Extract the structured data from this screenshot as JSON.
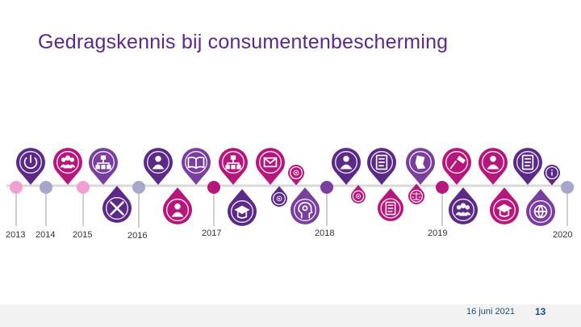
{
  "slide": {
    "title": "Gedragskennis bij consumentenbescherming"
  },
  "timeline": {
    "years": [
      "2013",
      "2014",
      "2015",
      "2016",
      "2017",
      "2018",
      "2019",
      "2020"
    ],
    "colors": {
      "purple_dark": "#5b2a86",
      "magenta": "#b5187b",
      "purple_mid": "#7a3f9d",
      "pink_light": "#f0a0d2",
      "lavender": "#a9a6cc",
      "line": "#d8d8d8"
    },
    "markers_top": [
      {
        "icon": "power-icon",
        "color": "purple_dark"
      },
      {
        "icon": "group-icon",
        "color": "magenta"
      },
      {
        "icon": "hierarchy-icon",
        "color": "purple_mid"
      },
      {
        "icon": "presenter-icon",
        "color": "purple_dark"
      },
      {
        "icon": "book-icon",
        "color": "purple_mid"
      },
      {
        "icon": "org-chart-icon",
        "color": "magenta"
      },
      {
        "icon": "envelope-icon",
        "color": "magenta"
      },
      {
        "icon": "small-badge-icon",
        "color": "magenta"
      },
      {
        "icon": "person-icon",
        "color": "purple_dark"
      },
      {
        "icon": "document-flag-icon",
        "color": "purple_dark"
      },
      {
        "icon": "map-icon",
        "color": "purple_mid"
      },
      {
        "icon": "gavel-icon",
        "color": "magenta"
      },
      {
        "icon": "user-icon",
        "color": "magenta"
      },
      {
        "icon": "checklist-icon",
        "color": "purple_dark"
      },
      {
        "icon": "info-icon",
        "color": "purple_dark"
      }
    ],
    "markers_bottom": [
      {
        "icon": "tools-icon",
        "color": "purple_dark"
      },
      {
        "icon": "person-icon",
        "color": "magenta"
      },
      {
        "icon": "graduate-icon",
        "color": "purple_dark"
      },
      {
        "icon": "coin-icon",
        "color": "purple_dark"
      },
      {
        "icon": "head-gears-icon",
        "color": "purple_mid"
      },
      {
        "icon": "coin-icon",
        "color": "magenta"
      },
      {
        "icon": "invoice-icon",
        "color": "magenta"
      },
      {
        "icon": "scale-icon",
        "color": "magenta"
      },
      {
        "icon": "team-icon",
        "color": "purple_dark"
      },
      {
        "icon": "mortarboard-icon",
        "color": "magenta"
      },
      {
        "icon": "globe-icon",
        "color": "purple_mid"
      }
    ]
  },
  "footer": {
    "date": "16 juni 2021",
    "page": "13"
  }
}
